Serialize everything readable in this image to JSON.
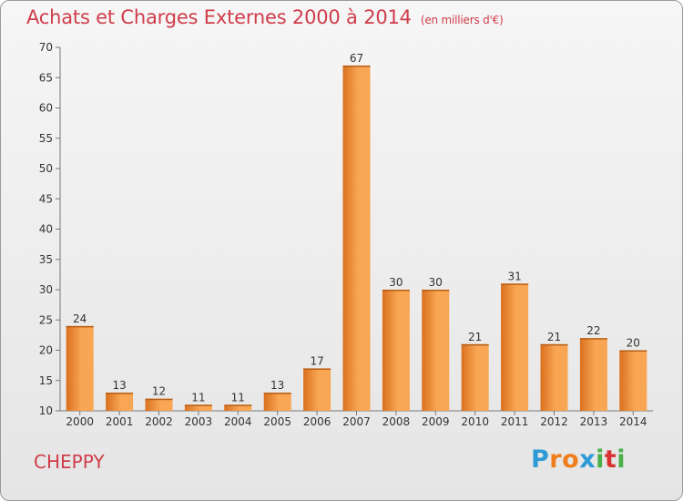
{
  "title": "Achats et Charges Externes 2000 à 2014",
  "subtitle": "(en milliers d'€)",
  "commune": "CHEPPY",
  "logo": {
    "letters": [
      "P",
      "r",
      "o",
      "x",
      "i",
      "t",
      "i"
    ],
    "colors": [
      "#2e9ad6",
      "#f07d1c",
      "#f07d1c",
      "#2e9ad6",
      "#49b04a",
      "#d93232",
      "#49b04a"
    ]
  },
  "colors": {
    "bar_light": "#f8a654",
    "bar_dark": "#d9701e",
    "title": "#d03c4a"
  },
  "chart_data": {
    "type": "bar",
    "title": "Achats et Charges Externes 2000 à 2014",
    "subtitle": "(en milliers d'€)",
    "xlabel": "",
    "ylabel": "",
    "categories": [
      "2000",
      "2001",
      "2002",
      "2003",
      "2004",
      "2005",
      "2006",
      "2007",
      "2008",
      "2009",
      "2010",
      "2011",
      "2012",
      "2013",
      "2014"
    ],
    "values": [
      24,
      13,
      12,
      11,
      11,
      13,
      17,
      67,
      30,
      30,
      21,
      31,
      21,
      22,
      20
    ],
    "ylim": [
      10,
      70
    ],
    "yticks": [
      10,
      15,
      20,
      25,
      30,
      35,
      40,
      45,
      50,
      55,
      60,
      65,
      70
    ],
    "grid": false,
    "legend": "none"
  }
}
